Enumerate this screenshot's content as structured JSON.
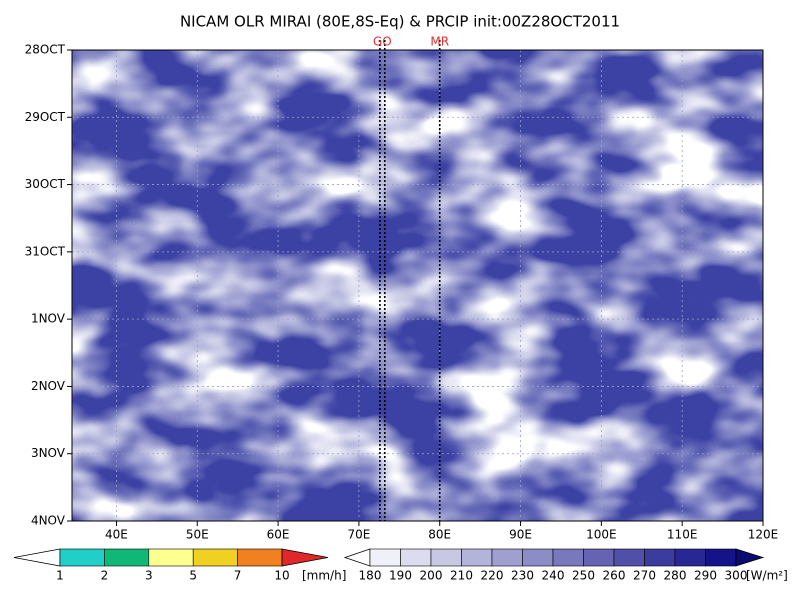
{
  "chart_data": {
    "type": "hovmoller",
    "title": "NICAM OLR MIRAI (80E,8S-Eq) & PRCIP init:00Z28OCT2011",
    "xlim": [
      34.5,
      120
    ],
    "xticks": [
      {
        "value": 40,
        "label": "40E"
      },
      {
        "value": 50,
        "label": "50E"
      },
      {
        "value": 60,
        "label": "60E"
      },
      {
        "value": 70,
        "label": "70E"
      },
      {
        "value": 80,
        "label": "80E"
      },
      {
        "value": 90,
        "label": "90E"
      },
      {
        "value": 100,
        "label": "100E"
      },
      {
        "value": 110,
        "label": "110E"
      },
      {
        "value": 120,
        "label": "120E"
      }
    ],
    "yticks": [
      "28OCT",
      "29OCT",
      "30OCT",
      "31OCT",
      "1NOV",
      "2NOV",
      "3NOV",
      "4NOV"
    ],
    "grid": true,
    "markers": [
      {
        "label": "GO",
        "color": "#e03030",
        "x": [
          72.6,
          73.2
        ]
      },
      {
        "label": "MR",
        "color": "#e03030",
        "x": [
          80
        ]
      }
    ],
    "colorbars": [
      {
        "levels": [
          1,
          2,
          3,
          5,
          7,
          10
        ],
        "unit": "[mm/h]",
        "colors": [
          "#ffffff",
          "#20d0c8",
          "#10b878",
          "#ffff90",
          "#f0d020",
          "#f08020",
          "#e02828"
        ]
      },
      {
        "levels": [
          180,
          190,
          200,
          210,
          220,
          230,
          240,
          250,
          260,
          270,
          280,
          290,
          300
        ],
        "unit": "[W/m²]",
        "colors": [
          "#ffffff",
          "#f0f0f8",
          "#dcdcee",
          "#c8c8e4",
          "#b4b4da",
          "#a0a0d0",
          "#8c8cc6",
          "#7878bc",
          "#6464b2",
          "#5050a8",
          "#3c3c9e",
          "#282894",
          "#14148a",
          "#0a0a70"
        ]
      }
    ]
  }
}
